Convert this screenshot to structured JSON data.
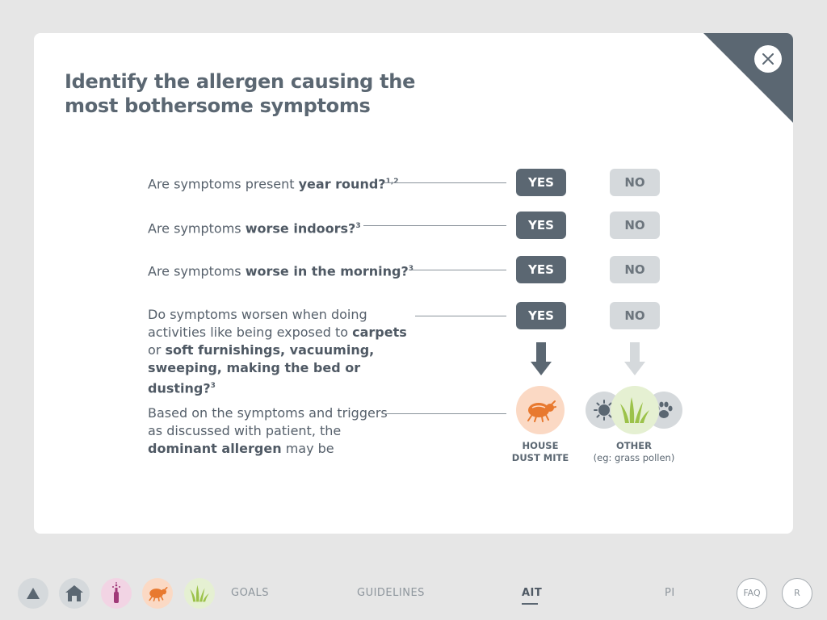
{
  "dialog": {
    "title": "Identify the allergen causing the most bothersome symptoms",
    "close_icon": "close-icon"
  },
  "questions": [
    {
      "pre": "Are symptoms present ",
      "bold": "year round?",
      "ref": "1,2",
      "yes": "YES",
      "no": "NO"
    },
    {
      "pre": "Are symptoms ",
      "bold": "worse indoors?",
      "ref": "3",
      "yes": "YES",
      "no": "NO"
    },
    {
      "pre": "Are symptoms ",
      "bold": "worse in the morning?",
      "ref": "3",
      "yes": "YES",
      "no": "NO"
    },
    {
      "t1": "Do symptoms worsen when doing activities like being exposed to ",
      "b1": "carpets",
      "t2": " or ",
      "b2": "soft furnishings, vacuuming, sweeping, making the bed or dusting?",
      "ref": "3",
      "yes": "YES",
      "no": "NO"
    }
  ],
  "result": {
    "pre": "Based on the symptoms and triggers as discussed with patient, the ",
    "bold": "dominant allergen",
    "post": " may be",
    "option_yes": {
      "line1": "HOUSE",
      "line2": "DUST MITE",
      "icon": "dust-mite-icon",
      "color": "#e8792f"
    },
    "option_no": {
      "line1": "OTHER",
      "line2": "(eg: grass pollen)",
      "icons": [
        "mould-spore-icon",
        "grass-icon",
        "paw-icon"
      ]
    }
  },
  "colors": {
    "slate": "#5b6772",
    "orange": "#e8792f",
    "green": "#9cc24a",
    "purple": "#a03a78"
  },
  "nav": {
    "icons": [
      "triangle-up-icon",
      "house-icon",
      "tree-pollen-icon",
      "dust-mite-icon",
      "grass-icon"
    ],
    "links": [
      "GOALS",
      "GUIDELINES",
      "AIT",
      "PI"
    ],
    "active": "AIT",
    "faq": "FAQ",
    "r": "R"
  }
}
